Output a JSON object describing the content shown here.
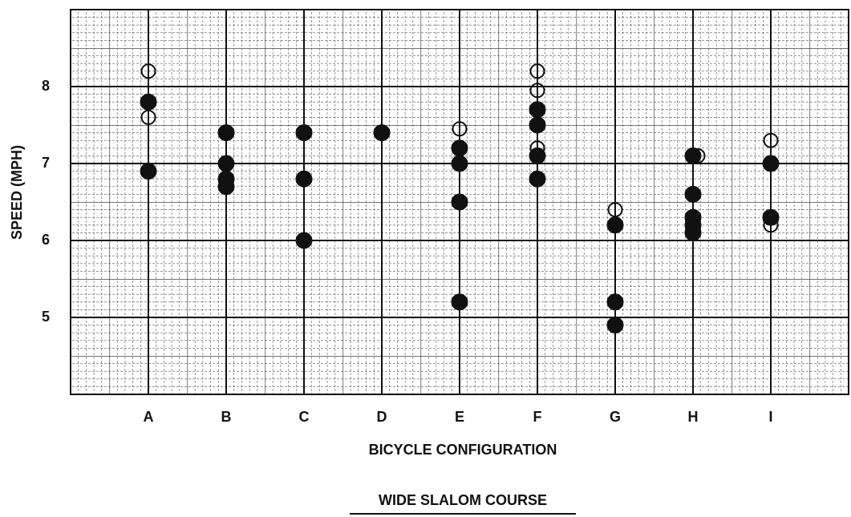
{
  "chart_data": {
    "type": "scatter",
    "xlabel": "BICYCLE CONFIGURATION",
    "ylabel": "SPEED (MPH)",
    "caption": "WIDE SLALOM COURSE",
    "categories": [
      "A",
      "B",
      "C",
      "D",
      "E",
      "F",
      "G",
      "H",
      "I"
    ],
    "ylim": [
      4,
      9
    ],
    "yticks": [
      5,
      6,
      7,
      8
    ],
    "grid": true,
    "series": [
      {
        "marker": "filled",
        "color": "#111111",
        "x": [
          "A",
          "A",
          "B",
          "B",
          "B",
          "B",
          "C",
          "C",
          "C",
          "D",
          "E",
          "E",
          "E",
          "E",
          "F",
          "F",
          "F",
          "F",
          "G",
          "G",
          "G",
          "H",
          "H",
          "H",
          "H",
          "H",
          "I",
          "I"
        ],
        "values": [
          7.8,
          6.9,
          7.4,
          7.0,
          6.8,
          6.7,
          7.4,
          6.8,
          6.0,
          7.4,
          7.2,
          7.0,
          6.5,
          5.2,
          7.7,
          7.5,
          7.1,
          6.8,
          6.2,
          5.2,
          4.9,
          7.1,
          6.6,
          6.3,
          6.2,
          6.1,
          7.0,
          6.3
        ]
      },
      {
        "marker": "open",
        "color": "#111111",
        "x": [
          "A",
          "A",
          "E",
          "F",
          "F",
          "F",
          "G",
          "H",
          "I",
          "I"
        ],
        "values": [
          8.2,
          7.6,
          7.45,
          8.2,
          7.95,
          7.2,
          6.4,
          7.1,
          7.3,
          6.2
        ]
      }
    ]
  }
}
